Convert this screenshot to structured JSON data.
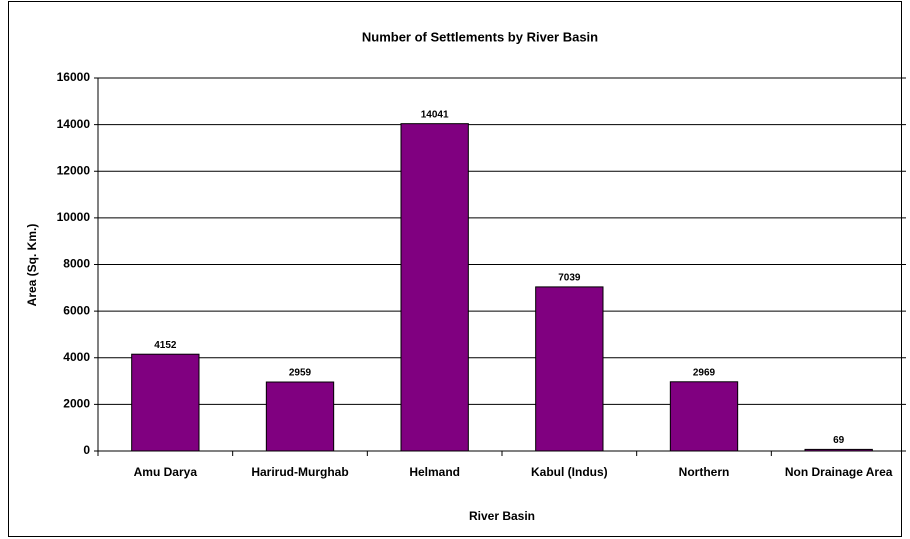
{
  "chart_data": {
    "type": "bar",
    "title": "Number of Settlements by River Basin",
    "x_label": "River Basin",
    "y_label": "Area (Sq. Km.)",
    "categories": [
      "Amu Darya",
      "Harirud-Murghab",
      "Helmand",
      "Kabul (Indus)",
      "Northern",
      "Non Drainage Area"
    ],
    "values": [
      4152,
      2959,
      14041,
      7039,
      2969,
      69
    ],
    "color": "#800080",
    "ylim": [
      0,
      16000
    ],
    "yticks": [
      0,
      2000,
      4000,
      6000,
      8000,
      10000,
      12000,
      14000,
      16000
    ],
    "grid": true
  }
}
